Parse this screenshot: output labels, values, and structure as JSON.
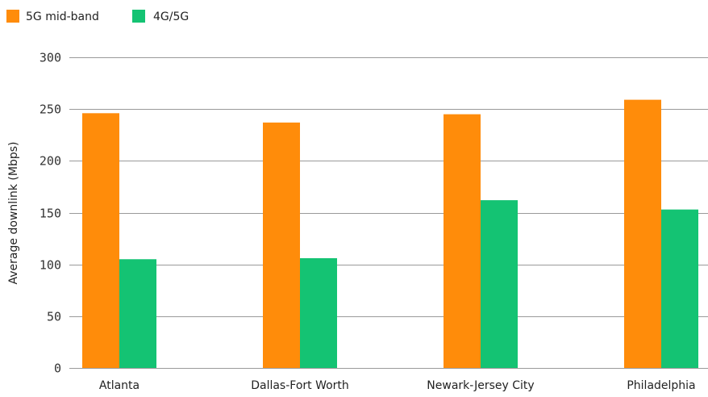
{
  "chart_data": {
    "type": "bar",
    "title": "",
    "xlabel": "",
    "ylabel": "Average downlink (Mbps)",
    "ylim": [
      0,
      300
    ],
    "yticks": [
      0,
      50,
      100,
      150,
      200,
      250,
      300
    ],
    "grid": true,
    "legend_position": "top-left",
    "categories": [
      "Atlanta",
      "Dallas-Fort Worth",
      "Newark-Jersey City",
      "Philadelphia"
    ],
    "series": [
      {
        "name": "5G mid-band",
        "color": "#ff8c0a",
        "values": [
          246,
          237,
          245,
          259
        ]
      },
      {
        "name": "4G/5G",
        "color": "#14c373",
        "values": [
          105,
          106,
          162,
          153
        ]
      }
    ]
  }
}
